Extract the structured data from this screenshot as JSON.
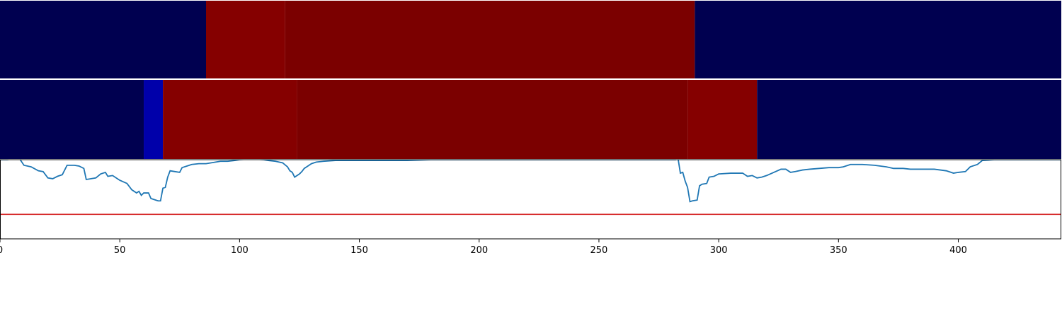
{
  "chart_data": [
    {
      "type": "heatmap",
      "panel": "top-strip",
      "xlim": [
        0,
        443
      ],
      "colors": {
        "background": "#000050",
        "high": "#850000",
        "high_dark": "#7b0000"
      },
      "segments": [
        {
          "x0": 0,
          "x1": 86,
          "level": "background"
        },
        {
          "x0": 86,
          "x1": 119,
          "level": "high"
        },
        {
          "x0": 119,
          "x1": 290,
          "level": "high_dark"
        },
        {
          "x0": 290,
          "x1": 443,
          "level": "background"
        }
      ]
    },
    {
      "type": "heatmap",
      "panel": "middle-strip",
      "xlim": [
        0,
        443
      ],
      "colors": {
        "background": "#000050",
        "mid": "#0000aa",
        "high": "#850000",
        "high_dark": "#7b0000"
      },
      "segments": [
        {
          "x0": 0,
          "x1": 60,
          "level": "background"
        },
        {
          "x0": 60,
          "x1": 68,
          "level": "mid"
        },
        {
          "x0": 68,
          "x1": 124,
          "level": "high"
        },
        {
          "x0": 124,
          "x1": 287,
          "level": "high_dark"
        },
        {
          "x0": 287,
          "x1": 316,
          "level": "high"
        },
        {
          "x0": 316,
          "x1": 443,
          "level": "background"
        }
      ]
    },
    {
      "type": "line",
      "panel": "bottom",
      "xlim": [
        0,
        443
      ],
      "ylim": [
        0,
        1
      ],
      "series": [
        {
          "color": "#1f77b4",
          "points": [
            [
              0,
              1.0
            ],
            [
              3,
              1.0
            ],
            [
              8,
              1.02
            ],
            [
              10,
              0.93
            ],
            [
              13,
              0.91
            ],
            [
              16,
              0.86
            ],
            [
              18,
              0.85
            ],
            [
              20,
              0.77
            ],
            [
              22,
              0.76
            ],
            [
              24,
              0.79
            ],
            [
              26,
              0.81
            ],
            [
              28,
              0.93
            ],
            [
              31,
              0.93
            ],
            [
              33,
              0.92
            ],
            [
              35,
              0.89
            ],
            [
              36,
              0.75
            ],
            [
              38,
              0.76
            ],
            [
              40,
              0.77
            ],
            [
              42,
              0.82
            ],
            [
              44,
              0.84
            ],
            [
              45,
              0.79
            ],
            [
              47,
              0.8
            ],
            [
              50,
              0.74
            ],
            [
              53,
              0.7
            ],
            [
              55,
              0.62
            ],
            [
              57,
              0.58
            ],
            [
              58,
              0.6
            ],
            [
              59,
              0.55
            ],
            [
              60,
              0.58
            ],
            [
              62,
              0.58
            ],
            [
              63,
              0.51
            ],
            [
              65,
              0.49
            ],
            [
              66,
              0.48
            ],
            [
              67,
              0.48
            ],
            [
              68,
              0.64
            ],
            [
              69,
              0.65
            ],
            [
              70,
              0.78
            ],
            [
              71,
              0.86
            ],
            [
              73,
              0.85
            ],
            [
              75,
              0.84
            ],
            [
              76,
              0.9
            ],
            [
              78,
              0.92
            ],
            [
              80,
              0.94
            ],
            [
              83,
              0.95
            ],
            [
              86,
              0.95
            ],
            [
              90,
              0.97
            ],
            [
              92,
              0.98
            ],
            [
              95,
              0.98
            ],
            [
              98,
              0.99
            ],
            [
              100,
              1.0
            ],
            [
              105,
              1.01
            ],
            [
              110,
              1.0
            ],
            [
              112,
              0.99
            ],
            [
              115,
              0.98
            ],
            [
              118,
              0.96
            ],
            [
              120,
              0.91
            ],
            [
              121,
              0.86
            ],
            [
              122,
              0.84
            ],
            [
              123,
              0.78
            ],
            [
              124,
              0.8
            ],
            [
              125,
              0.82
            ],
            [
              126,
              0.85
            ],
            [
              127,
              0.89
            ],
            [
              128,
              0.91
            ],
            [
              130,
              0.95
            ],
            [
              132,
              0.97
            ],
            [
              135,
              0.98
            ],
            [
              140,
              0.99
            ],
            [
              150,
              0.99
            ],
            [
              160,
              0.99
            ],
            [
              170,
              0.99
            ],
            [
              180,
              1.0
            ],
            [
              200,
              1.0
            ],
            [
              220,
              1.0
            ],
            [
              240,
              1.0
            ],
            [
              260,
              1.0
            ],
            [
              275,
              1.0
            ],
            [
              282,
              1.0
            ],
            [
              283,
              1.02
            ],
            [
              284,
              0.83
            ],
            [
              285,
              0.84
            ],
            [
              286,
              0.73
            ],
            [
              287,
              0.65
            ],
            [
              288,
              0.47
            ],
            [
              289,
              0.48
            ],
            [
              291,
              0.49
            ],
            [
              292,
              0.67
            ],
            [
              293,
              0.69
            ],
            [
              295,
              0.7
            ],
            [
              296,
              0.78
            ],
            [
              298,
              0.79
            ],
            [
              300,
              0.82
            ],
            [
              305,
              0.83
            ],
            [
              310,
              0.83
            ],
            [
              312,
              0.79
            ],
            [
              314,
              0.8
            ],
            [
              316,
              0.77
            ],
            [
              318,
              0.78
            ],
            [
              320,
              0.8
            ],
            [
              323,
              0.84
            ],
            [
              326,
              0.88
            ],
            [
              328,
              0.88
            ],
            [
              330,
              0.84
            ],
            [
              332,
              0.85
            ],
            [
              335,
              0.87
            ],
            [
              338,
              0.88
            ],
            [
              342,
              0.89
            ],
            [
              346,
              0.9
            ],
            [
              350,
              0.9
            ],
            [
              352,
              0.91
            ],
            [
              355,
              0.94
            ],
            [
              360,
              0.94
            ],
            [
              365,
              0.93
            ],
            [
              370,
              0.91
            ],
            [
              373,
              0.89
            ],
            [
              377,
              0.89
            ],
            [
              380,
              0.88
            ],
            [
              385,
              0.88
            ],
            [
              390,
              0.88
            ],
            [
              395,
              0.86
            ],
            [
              398,
              0.83
            ],
            [
              400,
              0.84
            ],
            [
              403,
              0.85
            ],
            [
              405,
              0.91
            ],
            [
              408,
              0.94
            ],
            [
              410,
              0.99
            ],
            [
              415,
              1.0
            ],
            [
              420,
              1.0
            ],
            [
              443,
              1.0
            ]
          ]
        },
        {
          "color": "#d62728",
          "points": [
            [
              0,
              0.31
            ],
            [
              443,
              0.31
            ]
          ]
        }
      ],
      "xticks": [
        0,
        50,
        100,
        150,
        200,
        250,
        300,
        350,
        400
      ]
    }
  ]
}
